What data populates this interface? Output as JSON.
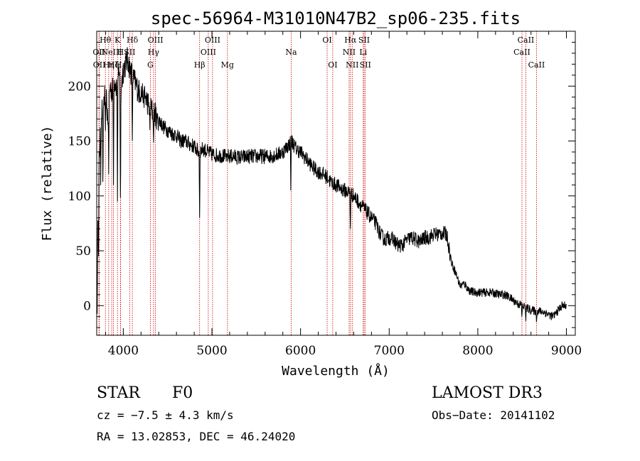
{
  "chart_data": {
    "type": "line",
    "title": "spec-56964-M31010N47B2_sp06-235.fits",
    "xlabel": "Wavelength (Å)",
    "ylabel": "Flux (relative)",
    "xlim": [
      3700,
      9100
    ],
    "ylim": [
      -27,
      250
    ],
    "xticks": [
      4000,
      5000,
      6000,
      7000,
      8000,
      9000
    ],
    "xtick_labels": [
      "4000",
      "5000",
      "6000",
      "7000",
      "8000",
      "9000"
    ],
    "yticks": [
      0,
      50,
      100,
      150,
      200
    ],
    "ytick_labels": [
      "0",
      "50",
      "100",
      "150",
      "200"
    ],
    "grid": false,
    "series": [
      {
        "name": "flux",
        "x": [
          3700,
          3725,
          3750,
          3775,
          3800,
          3825,
          3850,
          3875,
          3900,
          3925,
          3950,
          3975,
          4000,
          4025,
          4050,
          4075,
          4100,
          4125,
          4150,
          4175,
          4200,
          4250,
          4300,
          4350,
          4400,
          4450,
          4500,
          4550,
          4600,
          4650,
          4700,
          4750,
          4800,
          4850,
          4900,
          4950,
          5000,
          5050,
          5100,
          5150,
          5200,
          5250,
          5300,
          5350,
          5400,
          5450,
          5500,
          5550,
          5600,
          5650,
          5700,
          5750,
          5800,
          5850,
          5900,
          5950,
          6000,
          6050,
          6100,
          6150,
          6200,
          6250,
          6300,
          6350,
          6400,
          6450,
          6500,
          6550,
          6600,
          6650,
          6700,
          6750,
          6800,
          6850,
          6900,
          6950,
          7000,
          7050,
          7100,
          7150,
          7200,
          7250,
          7300,
          7350,
          7400,
          7450,
          7500,
          7550,
          7600,
          7650,
          7700,
          7750,
          7800,
          7850,
          7900,
          7950,
          8000,
          8050,
          8100,
          8150,
          8200,
          8250,
          8300,
          8350,
          8400,
          8450,
          8500,
          8550,
          8600,
          8650,
          8700,
          8750,
          8800,
          8850,
          8900,
          8950,
          9000
        ],
        "y": [
          50,
          130,
          175,
          185,
          195,
          170,
          200,
          195,
          205,
          200,
          210,
          200,
          215,
          220,
          225,
          215,
          210,
          205,
          200,
          195,
          195,
          190,
          180,
          175,
          170,
          163,
          160,
          157,
          155,
          150,
          150,
          147,
          145,
          140,
          143,
          140,
          138,
          137,
          137,
          136,
          136,
          136,
          135,
          135,
          136,
          136,
          136,
          136,
          136,
          136,
          137,
          138,
          140,
          145,
          150,
          143,
          140,
          135,
          130,
          125,
          122,
          120,
          117,
          112,
          110,
          107,
          105,
          103,
          100,
          95,
          90,
          85,
          80,
          75,
          65,
          60,
          62,
          60,
          55,
          55,
          60,
          62,
          60,
          58,
          62,
          62,
          65,
          65,
          66,
          65,
          40,
          30,
          18,
          20,
          14,
          12,
          12,
          12,
          12,
          12,
          11,
          10,
          10,
          8,
          5,
          2,
          0,
          -2,
          -4,
          -5,
          -5,
          -6,
          -8,
          -10,
          -5,
          0,
          0
        ]
      },
      {
        "name": "absorption-features",
        "x": [
          3705,
          3720,
          3745,
          3770,
          3798,
          3835,
          3889,
          3934,
          3968,
          4102,
          4227,
          4300,
          4341,
          4384,
          4861,
          5167,
          5890,
          6562,
          8498,
          8542,
          8662
        ],
        "y": [
          -25,
          30,
          110,
          100,
          150,
          120,
          110,
          95,
          78,
          150,
          185,
          160,
          145,
          170,
          80,
          135,
          105,
          70,
          -12,
          -14,
          -15
        ]
      }
    ],
    "spectral_lines": [
      {
        "wavelength": 3726,
        "label": "OII",
        "row": 2
      },
      {
        "wavelength": 3729,
        "label": "OII",
        "row": 3
      },
      {
        "wavelength": 3798,
        "label": "Hθ",
        "row": 1
      },
      {
        "wavelength": 3835,
        "label": "Hη",
        "row": 3
      },
      {
        "wavelength": 3869,
        "label": "NeIII",
        "row": 2
      },
      {
        "wavelength": 3889,
        "label": "Hζ",
        "row": 3
      },
      {
        "wavelength": 3934,
        "label": "K",
        "row": 1
      },
      {
        "wavelength": 3968,
        "label": "H",
        "row": 2
      },
      {
        "wavelength": 3970,
        "label": "Hε",
        "row": 3
      },
      {
        "wavelength": 4072,
        "label": "SII",
        "row": 2
      },
      {
        "wavelength": 4102,
        "label": "Hδ",
        "row": 1
      },
      {
        "wavelength": 4305,
        "label": "G",
        "row": 3
      },
      {
        "wavelength": 4341,
        "label": "Hγ",
        "row": 2
      },
      {
        "wavelength": 4363,
        "label": "OIII",
        "row": 1
      },
      {
        "wavelength": 4861,
        "label": "Hβ",
        "row": 3
      },
      {
        "wavelength": 4959,
        "label": "OIII",
        "row": 2
      },
      {
        "wavelength": 5007,
        "label": "OIII",
        "row": 1
      },
      {
        "wavelength": 5175,
        "label": "Mg",
        "row": 3
      },
      {
        "wavelength": 5894,
        "label": "Na",
        "row": 2
      },
      {
        "wavelength": 6300,
        "label": "OI",
        "row": 1
      },
      {
        "wavelength": 6363,
        "label": "OI",
        "row": 3
      },
      {
        "wavelength": 6548,
        "label": "NII",
        "row": 2
      },
      {
        "wavelength": 6563,
        "label": "Hα",
        "row": 1
      },
      {
        "wavelength": 6583,
        "label": "NII",
        "row": 3
      },
      {
        "wavelength": 6707,
        "label": "Li",
        "row": 2
      },
      {
        "wavelength": 6717,
        "label": "SII",
        "row": 1
      },
      {
        "wavelength": 6731,
        "label": "SII",
        "row": 3
      },
      {
        "wavelength": 8498,
        "label": "CaII",
        "row": 2
      },
      {
        "wavelength": 8542,
        "label": "CaII",
        "row": 1
      },
      {
        "wavelength": 8662,
        "label": "CaII",
        "row": 3
      }
    ],
    "info": {
      "object_class": "STAR",
      "subclass": "F0",
      "survey": "LAMOST DR3",
      "redshift_text": "cz = −7.5 ± 4.3 km/s",
      "obs_date_text": "Obs−Date: 20141102",
      "coords_text": "RA =  13.02853, DEC =  46.24020"
    },
    "colors": {
      "spectrum": "#000000",
      "line_markers": "#cc0000",
      "axes": "#000000",
      "background": "#ffffff"
    }
  }
}
